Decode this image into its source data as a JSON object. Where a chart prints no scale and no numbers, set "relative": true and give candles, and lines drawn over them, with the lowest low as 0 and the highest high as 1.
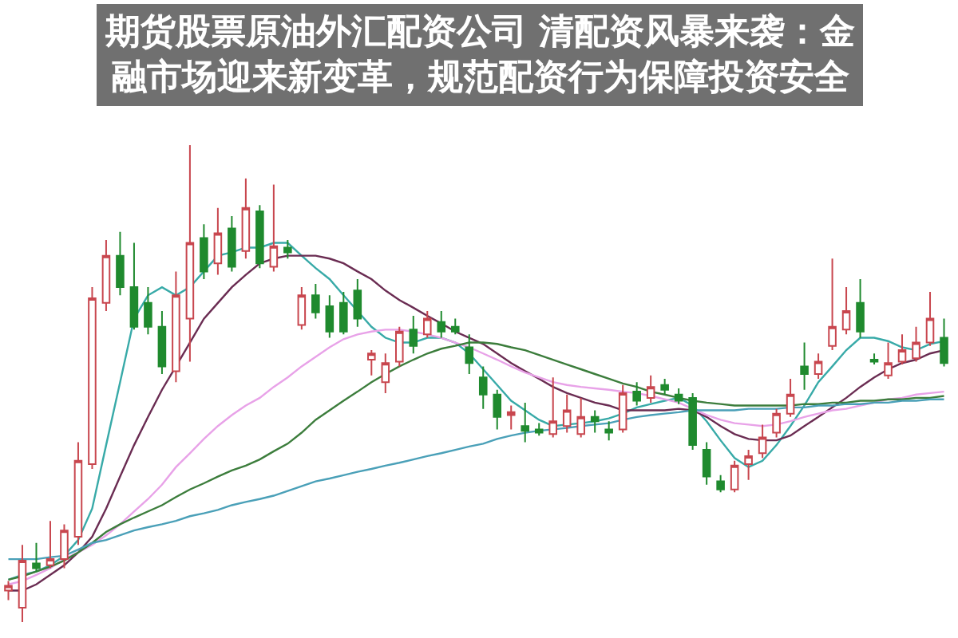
{
  "chart_data": {
    "type": "candlestick",
    "title": "期货股票原油外汇配资公司 清配资风暴来袭：金融市场迎来新变革，规范配资行为保障投资安全",
    "relative": true,
    "categories": [
      null,
      null,
      null,
      null,
      null,
      null,
      null,
      null,
      null,
      null,
      null,
      null,
      null,
      null,
      null,
      null,
      null,
      null,
      null,
      null,
      null,
      null,
      null,
      null,
      null,
      null,
      null,
      null,
      null,
      null,
      null,
      null,
      null,
      null,
      null,
      null,
      null,
      null,
      null,
      null,
      null,
      null,
      null,
      null,
      null,
      null,
      null,
      null,
      null,
      null,
      null,
      null,
      null,
      null,
      null,
      null,
      null,
      null,
      null,
      null,
      null,
      null,
      null,
      null,
      null,
      null,
      null,
      null
    ],
    "ohlc": [
      [
        0.066,
        0.086,
        0.046,
        0.076
      ],
      [
        0.03,
        0.162,
        0,
        0.129
      ],
      [
        0.123,
        0.166,
        0.106,
        0.113
      ],
      [
        0.119,
        0.212,
        0.113,
        0.132
      ],
      [
        0.132,
        0.205,
        0.113,
        0.192
      ],
      [
        0.179,
        0.377,
        0.162,
        0.338
      ],
      [
        0.331,
        0.702,
        0.321,
        0.679
      ],
      [
        0.669,
        0.801,
        0.652,
        0.768
      ],
      [
        0.768,
        0.818,
        0.685,
        0.702
      ],
      [
        0.702,
        0.795,
        0.613,
        0.619
      ],
      [
        0.669,
        0.702,
        0.603,
        0.619
      ],
      [
        0.619,
        0.652,
        0.52,
        0.536
      ],
      [
        0.526,
        0.735,
        0.503,
        0.685
      ],
      [
        0.636,
        1,
        0.546,
        0.795
      ],
      [
        0.805,
        0.834,
        0.719,
        0.735
      ],
      [
        0.752,
        0.868,
        0.728,
        0.815
      ],
      [
        0.825,
        0.851,
        0.735,
        0.745
      ],
      [
        0.778,
        0.93,
        0.762,
        0.868
      ],
      [
        0.861,
        0.874,
        0.742,
        0.752
      ],
      [
        0.745,
        0.917,
        0.735,
        0.788
      ],
      [
        0.785,
        0.801,
        0.762,
        0.775
      ],
      [
        0.623,
        0.702,
        0.613,
        0.685
      ],
      [
        0.685,
        0.709,
        0.636,
        0.649
      ],
      [
        0.662,
        0.685,
        0.596,
        0.609
      ],
      [
        0.669,
        0.692,
        0.603,
        0.609
      ],
      [
        0.695,
        0.719,
        0.619,
        0.636
      ],
      [
        0.55,
        0.57,
        0.517,
        0.563
      ],
      [
        0.503,
        0.563,
        0.48,
        0.543
      ],
      [
        0.546,
        0.619,
        0.536,
        0.609
      ],
      [
        0.613,
        0.642,
        0.563,
        0.579
      ],
      [
        0.603,
        0.652,
        0.596,
        0.636
      ],
      [
        0.629,
        0.652,
        0.596,
        0.609
      ],
      [
        0.619,
        0.636,
        0.603,
        0.609
      ],
      [
        0.576,
        0.603,
        0.52,
        0.543
      ],
      [
        0.513,
        0.536,
        0.447,
        0.477
      ],
      [
        0.477,
        0.487,
        0.404,
        0.43
      ],
      [
        0.434,
        0.454,
        0.404,
        0.44
      ],
      [
        0.411,
        0.46,
        0.377,
        0.401
      ],
      [
        0.404,
        0.417,
        0.391,
        0.397
      ],
      [
        0.394,
        0.513,
        0.387,
        0.421
      ],
      [
        0.411,
        0.477,
        0.397,
        0.444
      ],
      [
        0.394,
        0.47,
        0.387,
        0.43
      ],
      [
        0.43,
        0.444,
        0.397,
        0.421
      ],
      [
        0.404,
        0.421,
        0.381,
        0.397
      ],
      [
        0.404,
        0.497,
        0.397,
        0.48
      ],
      [
        0.483,
        0.503,
        0.454,
        0.464
      ],
      [
        0.47,
        0.517,
        0.46,
        0.493
      ],
      [
        0.497,
        0.51,
        0.477,
        0.487
      ],
      [
        0.477,
        0.49,
        0.457,
        0.464
      ],
      [
        0.47,
        0.48,
        0.361,
        0.371
      ],
      [
        0.361,
        0.377,
        0.288,
        0.305
      ],
      [
        0.295,
        0.308,
        0.272,
        0.278
      ],
      [
        0.278,
        0.338,
        0.272,
        0.328
      ],
      [
        0.331,
        0.361,
        0.298,
        0.348
      ],
      [
        0.354,
        0.414,
        0.344,
        0.387
      ],
      [
        0.397,
        0.447,
        0.387,
        0.437
      ],
      [
        0.437,
        0.51,
        0.43,
        0.477
      ],
      [
        0.536,
        0.586,
        0.487,
        0.52
      ],
      [
        0.52,
        0.563,
        0.51,
        0.546
      ],
      [
        0.579,
        0.762,
        0.57,
        0.619
      ],
      [
        0.613,
        0.702,
        0.603,
        0.652
      ],
      [
        0.669,
        0.719,
        0.596,
        0.609
      ],
      [
        0.55,
        0.563,
        0.54,
        0.546
      ],
      [
        0.517,
        0.586,
        0.51,
        0.543
      ],
      [
        0.546,
        0.603,
        0.54,
        0.57
      ],
      [
        0.553,
        0.619,
        0.546,
        0.586
      ],
      [
        0.586,
        0.692,
        0.579,
        0.636
      ],
      [
        0.596,
        0.636,
        0.536,
        0.543
      ]
    ],
    "colors": [
      "#c8464e",
      "#c8464e",
      "#1f8a2e",
      "#c8464e",
      "#c8464e",
      "#c8464e",
      "#c8464e",
      "#c8464e",
      "#1f8a2e",
      "#1f8a2e",
      "#1f8a2e",
      "#1f8a2e",
      "#c8464e",
      "#c8464e",
      "#1f8a2e",
      "#c8464e",
      "#1f8a2e",
      "#c8464e",
      "#1f8a2e",
      "#c8464e",
      "#1f8a2e",
      "#c8464e",
      "#1f8a2e",
      "#1f8a2e",
      "#1f8a2e",
      "#1f8a2e",
      "#c8464e",
      "#c8464e",
      "#c8464e",
      "#1f8a2e",
      "#c8464e",
      "#1f8a2e",
      "#1f8a2e",
      "#1f8a2e",
      "#1f8a2e",
      "#1f8a2e",
      "#c8464e",
      "#1f8a2e",
      "#1f8a2e",
      "#c8464e",
      "#c8464e",
      "#c8464e",
      "#1f8a2e",
      "#1f8a2e",
      "#c8464e",
      "#1f8a2e",
      "#c8464e",
      "#1f8a2e",
      "#1f8a2e",
      "#1f8a2e",
      "#1f8a2e",
      "#1f8a2e",
      "#c8464e",
      "#c8464e",
      "#c8464e",
      "#c8464e",
      "#c8464e",
      "#1f8a2e",
      "#c8464e",
      "#c8464e",
      "#c8464e",
      "#1f8a2e",
      "#1f8a2e",
      "#c8464e",
      "#c8464e",
      "#c8464e",
      "#c8464e",
      "#1f8a2e"
    ],
    "series": [
      {
        "type": "line",
        "color": "#38aaa8",
        "values": [
          0.089,
          0.099,
          0.106,
          0.119,
          0.139,
          0.172,
          0.238,
          0.371,
          0.503,
          0.636,
          0.685,
          0.702,
          0.685,
          0.702,
          0.735,
          0.768,
          0.775,
          0.785,
          0.785,
          0.795,
          0.795,
          0.768,
          0.742,
          0.719,
          0.685,
          0.652,
          0.619,
          0.596,
          0.586,
          0.586,
          0.596,
          0.596,
          0.586,
          0.563,
          0.53,
          0.497,
          0.464,
          0.444,
          0.424,
          0.411,
          0.414,
          0.417,
          0.421,
          0.427,
          0.437,
          0.45,
          0.457,
          0.464,
          0.47,
          0.454,
          0.421,
          0.381,
          0.344,
          0.325,
          0.338,
          0.371,
          0.411,
          0.454,
          0.503,
          0.536,
          0.57,
          0.596,
          0.596,
          0.589,
          0.576,
          0.57,
          0.583,
          0.589
        ]
      },
      {
        "type": "line",
        "color": "#6a2c52",
        "values": [
          0.066,
          0.066,
          0.079,
          0.099,
          0.119,
          0.146,
          0.179,
          0.238,
          0.305,
          0.371,
          0.43,
          0.487,
          0.536,
          0.586,
          0.636,
          0.669,
          0.702,
          0.728,
          0.752,
          0.762,
          0.768,
          0.768,
          0.768,
          0.762,
          0.752,
          0.735,
          0.719,
          0.695,
          0.675,
          0.659,
          0.642,
          0.626,
          0.609,
          0.596,
          0.583,
          0.563,
          0.543,
          0.526,
          0.51,
          0.493,
          0.48,
          0.47,
          0.46,
          0.454,
          0.444,
          0.444,
          0.444,
          0.444,
          0.447,
          0.444,
          0.43,
          0.411,
          0.394,
          0.384,
          0.381,
          0.381,
          0.391,
          0.411,
          0.43,
          0.45,
          0.47,
          0.493,
          0.513,
          0.53,
          0.543,
          0.55,
          0.563,
          0.57
        ]
      },
      {
        "type": "line",
        "color": "#e8a2e8",
        "values": [
          0.079,
          0.086,
          0.099,
          0.113,
          0.132,
          0.146,
          0.162,
          0.182,
          0.205,
          0.232,
          0.258,
          0.288,
          0.325,
          0.354,
          0.384,
          0.411,
          0.434,
          0.454,
          0.47,
          0.493,
          0.513,
          0.536,
          0.556,
          0.576,
          0.593,
          0.603,
          0.609,
          0.613,
          0.613,
          0.609,
          0.603,
          0.596,
          0.586,
          0.576,
          0.563,
          0.55,
          0.536,
          0.523,
          0.513,
          0.503,
          0.497,
          0.493,
          0.49,
          0.487,
          0.483,
          0.48,
          0.474,
          0.467,
          0.46,
          0.447,
          0.434,
          0.424,
          0.417,
          0.414,
          0.411,
          0.414,
          0.421,
          0.43,
          0.437,
          0.444,
          0.447,
          0.454,
          0.46,
          0.467,
          0.47,
          0.477,
          0.48,
          0.483
        ]
      },
      {
        "type": "line",
        "color": "#3c7d3c",
        "values": [
          0.089,
          0.096,
          0.106,
          0.116,
          0.129,
          0.146,
          0.166,
          0.189,
          0.205,
          0.219,
          0.232,
          0.245,
          0.262,
          0.278,
          0.291,
          0.305,
          0.318,
          0.328,
          0.341,
          0.358,
          0.374,
          0.397,
          0.424,
          0.444,
          0.464,
          0.483,
          0.503,
          0.52,
          0.536,
          0.55,
          0.563,
          0.573,
          0.579,
          0.586,
          0.586,
          0.583,
          0.576,
          0.57,
          0.56,
          0.55,
          0.54,
          0.53,
          0.52,
          0.51,
          0.5,
          0.493,
          0.483,
          0.477,
          0.47,
          0.464,
          0.46,
          0.457,
          0.454,
          0.454,
          0.454,
          0.454,
          0.454,
          0.457,
          0.457,
          0.46,
          0.46,
          0.464,
          0.464,
          0.467,
          0.467,
          0.47,
          0.47,
          0.474
        ]
      },
      {
        "type": "line",
        "color": "#4aa0b8",
        "values": [
          0.132,
          0.132,
          0.132,
          0.136,
          0.139,
          0.152,
          0.166,
          0.172,
          0.182,
          0.192,
          0.199,
          0.205,
          0.212,
          0.222,
          0.228,
          0.235,
          0.245,
          0.252,
          0.258,
          0.265,
          0.275,
          0.285,
          0.295,
          0.301,
          0.308,
          0.315,
          0.321,
          0.328,
          0.334,
          0.341,
          0.348,
          0.354,
          0.361,
          0.368,
          0.374,
          0.384,
          0.391,
          0.397,
          0.401,
          0.404,
          0.407,
          0.411,
          0.414,
          0.417,
          0.424,
          0.43,
          0.434,
          0.437,
          0.44,
          0.444,
          0.444,
          0.444,
          0.444,
          0.447,
          0.447,
          0.447,
          0.45,
          0.45,
          0.454,
          0.454,
          0.457,
          0.457,
          0.46,
          0.46,
          0.464,
          0.464,
          0.467,
          0.467
        ]
      }
    ]
  }
}
